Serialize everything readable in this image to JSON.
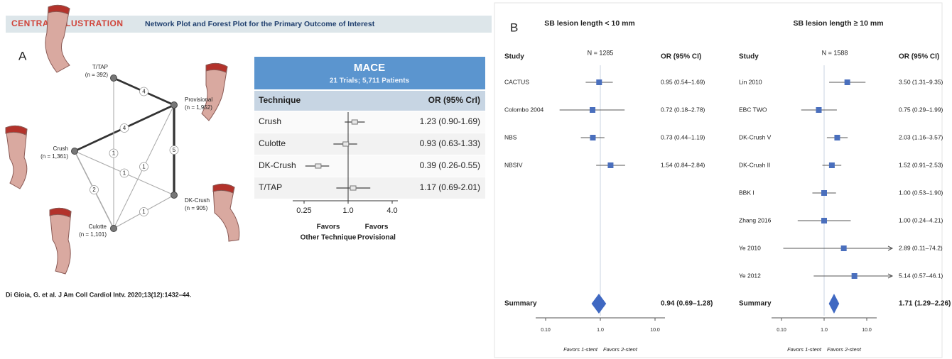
{
  "header": {
    "tag": "CENTRAL ILLUSTRATION",
    "title": "Network Plot and Forest Plot for the Primary Outcome of Interest"
  },
  "panel_a": {
    "label": "A",
    "network": {
      "nodes": [
        {
          "name": "T/TAP",
          "n": "(n = 392)"
        },
        {
          "name": "Provisional",
          "n": "(n = 1,952)"
        },
        {
          "name": "Crush",
          "n": "(n = 1,361)"
        },
        {
          "name": "DK-Crush",
          "n": "(n = 905)"
        },
        {
          "name": "Culotte",
          "n": "(n = 1,101)"
        }
      ],
      "edges": [
        {
          "from": "T/TAP",
          "to": "Provisional",
          "trials": 4
        },
        {
          "from": "Crush",
          "to": "Provisional",
          "trials": 4
        },
        {
          "from": "T/TAP",
          "to": "Culotte",
          "trials": 1
        },
        {
          "from": "Crush",
          "to": "DK-Crush",
          "trials": 1
        },
        {
          "from": "Culotte",
          "to": "Provisional",
          "trials": 1
        },
        {
          "from": "Culotte",
          "to": "DK-Crush",
          "trials": 1
        },
        {
          "from": "Crush",
          "to": "Culotte",
          "trials": 2
        },
        {
          "from": "Provisional",
          "to": "DK-Crush",
          "trials": 5
        }
      ]
    },
    "forest": {
      "title": "MACE",
      "subtitle": "21 Trials; 5,711 Patients",
      "columns": [
        "Technique",
        "OR (95% CrI)"
      ],
      "rows": [
        {
          "technique": "Crush",
          "label": "1.23 (0.90-1.69)",
          "or": 1.23,
          "lo": 0.9,
          "hi": 1.69
        },
        {
          "technique": "Culotte",
          "label": "0.93 (0.63-1.33)",
          "or": 0.93,
          "lo": 0.63,
          "hi": 1.33
        },
        {
          "technique": "DK-Crush",
          "label": "0.39 (0.26-0.55)",
          "or": 0.39,
          "lo": 0.26,
          "hi": 0.55
        },
        {
          "technique": "T/TAP",
          "label": "1.17 (0.69-2.01)",
          "or": 1.17,
          "lo": 0.69,
          "hi": 2.01
        }
      ],
      "xticks": [
        0.25,
        {
          "value": 1,
          "label": "1.0"
        },
        {
          "value": 4,
          "label": "4.0"
        }
      ],
      "favors_left": [
        "Favors",
        "Other Technique"
      ],
      "favors_right": [
        "Favors",
        "Provisional"
      ]
    },
    "citation": "Di Gioia, G. et al. J Am Coll Cardiol Intv. 2020;13(12):1432–44."
  },
  "panel_b": {
    "label": "B",
    "plots": [
      {
        "title": "SB lesion length < 10 mm",
        "headers": {
          "study": "Study",
          "n": "N = 1285",
          "or": "OR (95% CI)"
        },
        "rows": [
          {
            "study": "CACTUS",
            "label": "0.95 (0.54–1.69)",
            "or": 0.95,
            "lo": 0.54,
            "hi": 1.69
          },
          {
            "study": "Colombo 2004",
            "label": "0.72 (0.18–2.78)",
            "or": 0.72,
            "lo": 0.18,
            "hi": 2.78
          },
          {
            "study": "NBS",
            "label": "0.73 (0.44–1.19)",
            "or": 0.73,
            "lo": 0.44,
            "hi": 1.19
          },
          {
            "study": "NBSIV",
            "label": "1.54 (0.84–2.84)",
            "or": 1.54,
            "lo": 0.84,
            "hi": 2.84
          }
        ],
        "summary": {
          "study": "Summary",
          "label": "0.94 (0.69–1.28)",
          "or": 0.94,
          "lo": 0.69,
          "hi": 1.28
        },
        "xticks": [
          {
            "value": 0.1,
            "label": "0.10"
          },
          {
            "value": 1,
            "label": "1.0"
          },
          {
            "value": 10,
            "label": "10.0"
          }
        ],
        "favors": [
          "Favors 1-stent",
          "Favors 2-stent"
        ]
      },
      {
        "title": "SB lesion length ≥ 10 mm",
        "headers": {
          "study": "Study",
          "n": "N = 1588",
          "or": "OR (95% CI)"
        },
        "rows": [
          {
            "study": "Lin 2010",
            "label": "3.50 (1.31–9.35)",
            "or": 3.5,
            "lo": 1.31,
            "hi": 9.35
          },
          {
            "study": "EBC TWO",
            "label": "0.75 (0.29–1.99)",
            "or": 0.75,
            "lo": 0.29,
            "hi": 1.99
          },
          {
            "study": "DK-Crush V",
            "label": "2.03 (1.16–3.57)",
            "or": 2.03,
            "lo": 1.16,
            "hi": 3.57
          },
          {
            "study": "DK-Crush II",
            "label": "1.52 (0.91–2.53)",
            "or": 1.52,
            "lo": 0.91,
            "hi": 2.53
          },
          {
            "study": "BBK I",
            "label": "1.00 (0.53–1.90)",
            "or": 1.0,
            "lo": 0.53,
            "hi": 1.9
          },
          {
            "study": "Zhang 2016",
            "label": "1.00 (0.24–4.21)",
            "or": 1.0,
            "lo": 0.24,
            "hi": 4.21
          },
          {
            "study": "Ye 2010",
            "label": "2.89 (0.11–74.2)",
            "or": 2.89,
            "lo": 0.11,
            "hi": 74.2
          },
          {
            "study": "Ye 2012",
            "label": "5.14 (0.57–46.1)",
            "or": 5.14,
            "lo": 0.57,
            "hi": 46.1
          }
        ],
        "summary": {
          "study": "Summary",
          "label": "1.71 (1.29–2.26)",
          "or": 1.71,
          "lo": 1.29,
          "hi": 2.26
        },
        "xticks": [
          {
            "value": 0.1,
            "label": "0.10"
          },
          {
            "value": 1,
            "label": "1.0"
          },
          {
            "value": 10,
            "label": "10.0"
          }
        ],
        "favors": [
          "Favors 1-stent",
          "Favors 2-stent"
        ]
      }
    ]
  }
}
